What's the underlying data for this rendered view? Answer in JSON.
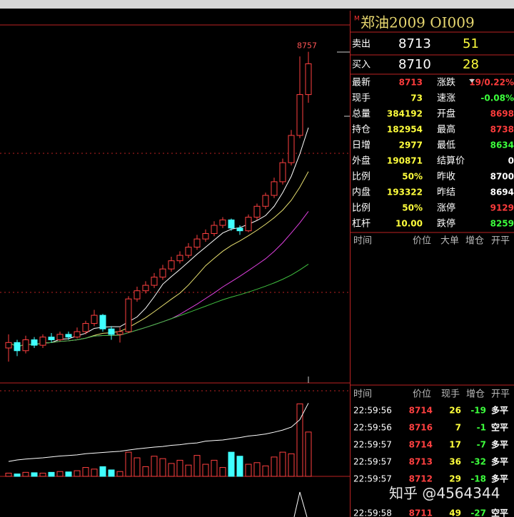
{
  "kline": {
    "ylim": [
      7560,
      8790
    ],
    "max_label": 8757,
    "candles": [
      [
        7670,
        7720,
        7620,
        7690
      ],
      [
        7690,
        7700,
        7640,
        7660
      ],
      [
        7660,
        7715,
        7650,
        7700
      ],
      [
        7700,
        7710,
        7670,
        7680
      ],
      [
        7680,
        7720,
        7670,
        7710
      ],
      [
        7710,
        7725,
        7690,
        7700
      ],
      [
        7700,
        7730,
        7695,
        7720
      ],
      [
        7720,
        7730,
        7700,
        7710
      ],
      [
        7710,
        7745,
        7705,
        7730
      ],
      [
        7730,
        7770,
        7720,
        7760
      ],
      [
        7760,
        7810,
        7750,
        7790
      ],
      [
        7790,
        7795,
        7730,
        7740
      ],
      [
        7740,
        7750,
        7700,
        7720
      ],
      [
        7720,
        7745,
        7690,
        7730
      ],
      [
        7730,
        7860,
        7725,
        7850
      ],
      [
        7850,
        7895,
        7840,
        7880
      ],
      [
        7880,
        7915,
        7870,
        7900
      ],
      [
        7900,
        7945,
        7890,
        7930
      ],
      [
        7930,
        7975,
        7920,
        7960
      ],
      [
        7960,
        8005,
        7950,
        7990
      ],
      [
        7990,
        8025,
        7980,
        8010
      ],
      [
        8010,
        8055,
        8000,
        8040
      ],
      [
        8040,
        8085,
        8030,
        8070
      ],
      [
        8070,
        8105,
        8060,
        8090
      ],
      [
        8090,
        8135,
        8080,
        8120
      ],
      [
        8120,
        8150,
        8110,
        8140
      ],
      [
        8140,
        8145,
        8100,
        8110
      ],
      [
        8110,
        8120,
        8085,
        8100
      ],
      [
        8100,
        8160,
        8095,
        8150
      ],
      [
        8150,
        8200,
        8140,
        8190
      ],
      [
        8190,
        8240,
        8180,
        8230
      ],
      [
        8230,
        8295,
        8220,
        8280
      ],
      [
        8280,
        8365,
        8270,
        8350
      ],
      [
        8350,
        8470,
        8340,
        8450
      ],
      [
        8450,
        8740,
        8440,
        8600
      ],
      [
        8600,
        8757,
        8570,
        8713
      ]
    ],
    "volume": [
      40,
      30,
      50,
      45,
      40,
      50,
      60,
      55,
      70,
      110,
      90,
      120,
      80,
      60,
      300,
      230,
      120,
      250,
      220,
      160,
      200,
      140,
      260,
      150,
      200,
      110,
      300,
      250,
      150,
      170,
      130,
      240,
      300,
      280,
      900,
      550
    ],
    "vlim": [
      0,
      1000
    ],
    "open_interest": [
      181000,
      181050,
      181080,
      181100,
      181120,
      181150,
      181180,
      181200,
      181220,
      181260,
      181280,
      181300,
      181320,
      181340,
      181380,
      181420,
      181450,
      181480,
      181500,
      181540,
      181560,
      181600,
      181620,
      181680,
      181700,
      181720,
      181760,
      181800,
      181850,
      181880,
      181920,
      181980,
      182050,
      182150,
      182400,
      182954
    ],
    "oilim": [
      180500,
      183200
    ]
  },
  "panel": {
    "marker": "M",
    "title": "郑油2009  OI009",
    "quotes": [
      {
        "label": "卖出",
        "price": "8713",
        "qty": "51"
      },
      {
        "label": "买入",
        "price": "8710",
        "qty": "28"
      }
    ],
    "stats": [
      {
        "label": "最新",
        "value": "8713",
        "color": "#ff3c3c",
        "label2": "涨跌",
        "value2": "19/0.22%",
        "color2": "#ff3c3c"
      },
      {
        "label": "现手",
        "value": "73",
        "color": "#ffff3c",
        "label2": "速涨",
        "value2": "-0.08%",
        "color2": "#3cff3c"
      },
      {
        "label": "总量",
        "value": "384192",
        "color": "#ffff3c",
        "label2": "开盘",
        "value2": "8698",
        "color2": "#ff3c3c"
      },
      {
        "label": "持仓",
        "value": "182954",
        "color": "#ffff3c",
        "label2": "最高",
        "value2": "8738",
        "color2": "#ff3c3c"
      },
      {
        "label": "日增",
        "value": "2977",
        "color": "#ffff3c",
        "label2": "最低",
        "value2": "8634",
        "color2": "#3cff3c"
      },
      {
        "label": "外盘",
        "value": "190871",
        "color": "#ffff3c",
        "label2": "结算价",
        "value2": "0",
        "color2": "#ffffff"
      },
      {
        "label": "比例",
        "value": "50%",
        "color": "#ffff3c",
        "label2": "昨收",
        "value2": "8700",
        "color2": "#ffffff"
      },
      {
        "label": "内盘",
        "value": "193322",
        "color": "#ffff3c",
        "label2": "昨结",
        "value2": "8694",
        "color2": "#ffffff"
      },
      {
        "label": "比例",
        "value": "50%",
        "color": "#ffff3c",
        "label2": "涨停",
        "value2": "9129",
        "color2": "#ff3c3c"
      },
      {
        "label": "杠杆",
        "value": "10.00",
        "color": "#ffff3c",
        "label2": "跌停",
        "value2": "8259",
        "color2": "#3cff3c"
      }
    ],
    "big_header": [
      "时间",
      "价位",
      "大单",
      "增仓",
      "开平"
    ],
    "tick_header": [
      "时间",
      "价位",
      "现手",
      "增仓",
      "开平"
    ],
    "ticks": [
      [
        "22:59:56",
        "8714",
        "26",
        "-19",
        "多平"
      ],
      [
        "22:59:56",
        "8716",
        "7",
        "-1",
        "空平"
      ],
      [
        "22:59:57",
        "8714",
        "17",
        "-7",
        "多平"
      ],
      [
        "22:59:57",
        "8713",
        "36",
        "-32",
        "多平"
      ],
      [
        "22:59:57",
        "8712",
        "29",
        "-18",
        "多平"
      ],
      [
        "22:59:58",
        "8711",
        "49",
        "-27",
        "空平"
      ]
    ]
  },
  "watermark": "知乎 @4564344"
}
